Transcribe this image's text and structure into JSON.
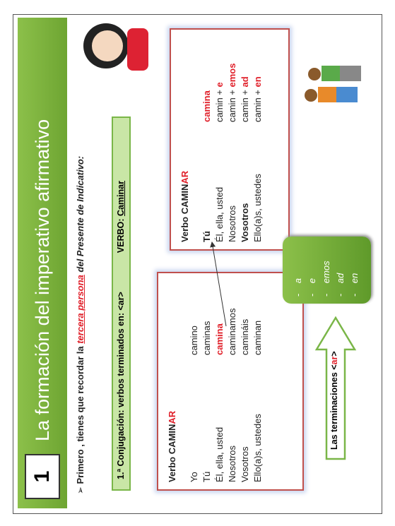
{
  "header": {
    "number": "1",
    "title": "La formación del imperativo afirmativo"
  },
  "intro": {
    "lead": "Primero , tienes que recordar la",
    "highlight": "tercera persona",
    "tail": "del Presente de Indicativo:"
  },
  "conjugation": {
    "label": "1.ª Conjugación: verbos terminados en: <ar>",
    "verb_label": "VERBO:",
    "verb": "Caminar"
  },
  "left_table": {
    "heading": "Verbo CAMIN",
    "heading_accent": "AR",
    "rows": [
      [
        "Yo",
        "camino"
      ],
      [
        "Tú",
        "caminas"
      ],
      [
        "Él, ella, usted",
        "camina"
      ],
      [
        "Nosotros",
        "caminamos"
      ],
      [
        "Vosotros",
        "camináis"
      ],
      [
        "Ello(a)s, ustedes",
        "caminan"
      ]
    ]
  },
  "right_table": {
    "heading": "Verbo CAMIN",
    "heading_accent": "AR",
    "rows": [
      [
        "Tú",
        "camina",
        ""
      ],
      [
        "Él, ella, usted",
        "camin +",
        "e"
      ],
      [
        "Nosotros",
        "camin +",
        "emos"
      ],
      [
        "Vosotros",
        "camin +",
        "ad"
      ],
      [
        "Ello(a)s, ustedes",
        "camin +",
        "en"
      ]
    ]
  },
  "endings": [
    "a",
    "e",
    "emos",
    "ad",
    "en"
  ],
  "arrow_label": {
    "text": "Las terminaciones <",
    "accent": "ar",
    "close": ">"
  }
}
